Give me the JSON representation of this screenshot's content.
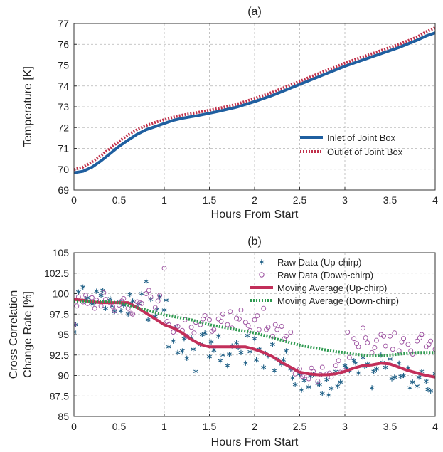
{
  "chart_data": [
    {
      "type": "line",
      "title": "(a)",
      "xlabel": "Hours From Start",
      "ylabel": "Temperature [K]",
      "xlim": [
        0,
        4
      ],
      "ylim": [
        69,
        77
      ],
      "xticks": [
        "0",
        "0.5",
        "1",
        "1.5",
        "2",
        "2.5",
        "3",
        "3.5",
        "4"
      ],
      "yticks": [
        "69",
        "70",
        "71",
        "72",
        "73",
        "74",
        "75",
        "76",
        "77"
      ],
      "grid": true,
      "legend_position": "bottom-right",
      "series": [
        {
          "name": "Inlet of Joint Box",
          "color": "#1f5fa0",
          "style": "solid",
          "x": [
            0,
            0.1,
            0.2,
            0.3,
            0.4,
            0.5,
            0.6,
            0.7,
            0.8,
            0.9,
            1.0,
            1.1,
            1.2,
            1.4,
            1.6,
            1.8,
            2.0,
            2.2,
            2.4,
            2.6,
            2.8,
            3.0,
            3.2,
            3.4,
            3.6,
            3.8,
            3.9,
            4.0
          ],
          "y": [
            69.83,
            69.9,
            70.1,
            70.4,
            70.75,
            71.1,
            71.4,
            71.68,
            71.9,
            72.05,
            72.2,
            72.35,
            72.45,
            72.6,
            72.78,
            72.98,
            73.25,
            73.55,
            73.9,
            74.25,
            74.6,
            74.95,
            75.25,
            75.55,
            75.85,
            76.2,
            76.4,
            76.55
          ]
        },
        {
          "name": "Outlet of Joint Box",
          "color": "#c0304a",
          "style": "dotted",
          "x": [
            0,
            0.1,
            0.2,
            0.3,
            0.4,
            0.5,
            0.6,
            0.7,
            0.8,
            0.9,
            1.0,
            1.1,
            1.2,
            1.4,
            1.6,
            1.8,
            2.0,
            2.2,
            2.4,
            2.6,
            2.8,
            3.0,
            3.2,
            3.4,
            3.6,
            3.8,
            3.9,
            4.0
          ],
          "y": [
            69.98,
            70.1,
            70.35,
            70.65,
            71.0,
            71.35,
            71.65,
            71.9,
            72.1,
            72.25,
            72.38,
            72.5,
            72.6,
            72.75,
            72.92,
            73.12,
            73.4,
            73.7,
            74.05,
            74.4,
            74.75,
            75.1,
            75.4,
            75.7,
            76.0,
            76.35,
            76.6,
            76.8
          ]
        }
      ]
    },
    {
      "type": "scatter",
      "title": "(b)",
      "xlabel": "Hours From Start",
      "ylabel": "Cross Correlation\nChange Rate [%]",
      "xlim": [
        0,
        4
      ],
      "ylim": [
        85,
        105
      ],
      "xticks": [
        "0",
        "0.5",
        "1",
        "1.5",
        "2",
        "2.5",
        "3",
        "3.5",
        "4"
      ],
      "yticks": [
        "85",
        "87.5",
        "90",
        "92.5",
        "95",
        "97.5",
        "100",
        "102.5",
        "105"
      ],
      "grid": true,
      "legend_position": "top-right",
      "raw_noise_note_free": true,
      "series": [
        {
          "name": "Raw Data (Up-chirp)",
          "kind": "raw",
          "marker": "asterisk",
          "color": "#1e5f86",
          "x": [
            0.0,
            0.05,
            0.1,
            0.15,
            0.2,
            0.25,
            0.3,
            0.35,
            0.4,
            0.45,
            0.5,
            0.55,
            0.6,
            0.65,
            0.7,
            0.75,
            0.8,
            0.85,
            0.9,
            0.95,
            1.0,
            1.05,
            1.1,
            1.15,
            1.2,
            1.25,
            1.3,
            1.35,
            1.4,
            1.45,
            1.5,
            1.55,
            1.6,
            1.65,
            1.7,
            1.75,
            1.8,
            1.85,
            1.9,
            1.95,
            2.0,
            2.05,
            2.1,
            2.15,
            2.2,
            2.25,
            2.3,
            2.35,
            2.4,
            2.45,
            2.5,
            2.55,
            2.6,
            2.65,
            2.7,
            2.75,
            2.8,
            2.85,
            2.9,
            2.95,
            3.0,
            3.05,
            3.1,
            3.15,
            3.2,
            3.25,
            3.3,
            3.35,
            3.4,
            3.45,
            3.5,
            3.55,
            3.6,
            3.65,
            3.7,
            3.75,
            3.8,
            3.85,
            3.9,
            3.95,
            4.0,
            0.02,
            0.12,
            0.22,
            0.32,
            0.42,
            0.52,
            0.62,
            0.72,
            0.82,
            0.92,
            1.02,
            1.12,
            1.22,
            1.32,
            1.42,
            1.52,
            1.62,
            1.72,
            1.82,
            1.92,
            2.02,
            2.12,
            2.22,
            2.32,
            2.42,
            2.52,
            2.62,
            2.72,
            2.82,
            2.92,
            3.02,
            3.12,
            3.22,
            3.32,
            3.42,
            3.52,
            3.62,
            3.72,
            3.82,
            3.92
          ],
          "y": [
            95.3,
            100.2,
            100.8,
            99.5,
            98.7,
            100.3,
            99.8,
            98.2,
            99.4,
            97.8,
            99.0,
            98.6,
            97.5,
            99.1,
            98.4,
            100.0,
            101.5,
            99.3,
            97.2,
            99.6,
            98.0,
            93.5,
            94.2,
            92.8,
            93.0,
            92.1,
            94.6,
            90.5,
            93.8,
            95.2,
            92.3,
            93.1,
            94.8,
            92.5,
            91.2,
            93.6,
            94.0,
            92.8,
            91.5,
            92.9,
            94.5,
            93.2,
            91.0,
            92.4,
            93.8,
            92.0,
            91.4,
            93.0,
            90.8,
            88.9,
            90.2,
            89.4,
            88.6,
            90.1,
            89.0,
            87.8,
            89.5,
            88.4,
            90.5,
            89.2,
            91.2,
            90.6,
            91.8,
            90.3,
            92.2,
            91.4,
            88.5,
            90.8,
            92.5,
            91.0,
            92.0,
            89.8,
            91.5,
            90.0,
            90.9,
            89.2,
            88.7,
            90.5,
            89.3,
            88.1,
            90.2,
            96.2,
            99.2,
            98.9,
            100.4,
            98.5,
            97.9,
            99.9,
            98.8,
            96.8,
            98.1,
            99.2,
            95.8,
            94.5,
            93.2,
            95.0,
            94.1,
            91.8,
            92.6,
            93.4,
            94.9,
            91.9,
            92.7,
            90.6,
            91.9,
            89.7,
            88.2,
            89.9,
            88.9,
            87.6,
            88.7,
            90.9,
            91.5,
            91.1,
            90.5,
            91.6,
            89.6,
            89.9,
            88.5,
            89.8,
            88.3
          ]
        },
        {
          "name": "Raw Data (Down-chirp)",
          "kind": "raw",
          "marker": "circle",
          "color": "#9a4e9e",
          "x": [
            0.0,
            0.05,
            0.1,
            0.15,
            0.2,
            0.25,
            0.3,
            0.35,
            0.4,
            0.45,
            0.5,
            0.55,
            0.6,
            0.65,
            0.7,
            0.75,
            0.8,
            0.85,
            0.9,
            0.95,
            1.0,
            1.05,
            1.1,
            1.15,
            1.2,
            1.25,
            1.3,
            1.35,
            1.4,
            1.45,
            1.5,
            1.55,
            1.6,
            1.65,
            1.7,
            1.75,
            1.8,
            1.85,
            1.9,
            1.95,
            2.0,
            2.05,
            2.1,
            2.15,
            2.2,
            2.25,
            2.3,
            2.35,
            2.4,
            2.45,
            2.5,
            2.55,
            2.6,
            2.65,
            2.7,
            2.75,
            2.8,
            2.85,
            2.9,
            2.95,
            3.0,
            3.05,
            3.1,
            3.15,
            3.2,
            3.25,
            3.3,
            3.35,
            3.4,
            3.45,
            3.5,
            3.55,
            3.6,
            3.65,
            3.7,
            3.75,
            3.8,
            3.85,
            3.9,
            3.95,
            4.0,
            0.03,
            0.13,
            0.23,
            0.33,
            0.43,
            0.53,
            0.63,
            0.73,
            0.83,
            0.93,
            1.03,
            1.13,
            1.23,
            1.33,
            1.43,
            1.53,
            1.63,
            1.73,
            1.83,
            1.93,
            2.03,
            2.13,
            2.23,
            2.33,
            2.43,
            2.53,
            2.63,
            2.73,
            2.83,
            2.93,
            3.03,
            3.13,
            3.23,
            3.33,
            3.43,
            3.53,
            3.63,
            3.73,
            3.83,
            3.93
          ],
          "y": [
            96.2,
            99.6,
            99.0,
            98.8,
            99.5,
            99.2,
            98.5,
            99.3,
            98.9,
            97.9,
            98.6,
            99.4,
            98.2,
            97.5,
            99.0,
            98.8,
            100.0,
            99.6,
            98.3,
            99.8,
            103.1,
            96.2,
            95.3,
            96.0,
            95.5,
            94.8,
            95.9,
            96.5,
            96.2,
            97.3,
            96.8,
            95.6,
            96.9,
            97.5,
            96.2,
            95.8,
            97.0,
            98.0,
            96.5,
            95.5,
            96.8,
            95.6,
            98.2,
            95.9,
            94.8,
            95.6,
            96.0,
            94.8,
            95.3,
            90.2,
            90.8,
            90.0,
            89.6,
            90.5,
            89.3,
            91.0,
            90.2,
            89.8,
            91.2,
            90.4,
            90.6,
            92.2,
            94.5,
            93.5,
            95.8,
            94.0,
            92.8,
            94.3,
            95.0,
            93.6,
            94.8,
            95.2,
            93.0,
            94.5,
            93.8,
            92.6,
            94.2,
            95.0,
            93.5,
            94.2,
            93.2,
            98.5,
            99.8,
            98.2,
            100.1,
            98.4,
            99.1,
            97.6,
            98.9,
            100.4,
            99.1,
            96.6,
            95.9,
            96.8,
            95.2,
            96.9,
            95.4,
            96.6,
            97.8,
            96.9,
            96.1,
            97.3,
            95.6,
            96.2,
            94.5,
            90.7,
            89.9,
            90.9,
            90.1,
            90.3,
            91.8,
            95.3,
            93.9,
            94.6,
            93.4,
            94.8,
            93.2,
            94.1,
            93.0,
            94.6,
            93.8
          ]
        },
        {
          "name": "Moving Average (Up-chirp)",
          "kind": "line",
          "style": "solid",
          "color": "#c22f5a",
          "x": [
            0,
            0.1,
            0.2,
            0.3,
            0.4,
            0.5,
            0.6,
            0.7,
            0.8,
            0.9,
            1.0,
            1.1,
            1.2,
            1.3,
            1.4,
            1.5,
            1.6,
            1.7,
            1.8,
            1.9,
            2.0,
            2.1,
            2.2,
            2.3,
            2.4,
            2.5,
            2.6,
            2.7,
            2.8,
            2.9,
            3.0,
            3.1,
            3.2,
            3.3,
            3.4,
            3.5,
            3.6,
            3.7,
            3.8,
            3.9,
            4.0
          ],
          "y": [
            99.3,
            99.2,
            99.0,
            98.9,
            98.9,
            98.9,
            98.9,
            98.3,
            97.6,
            96.9,
            96.2,
            95.8,
            95.2,
            94.4,
            93.8,
            93.5,
            93.5,
            93.5,
            93.5,
            93.5,
            93.2,
            92.8,
            92.3,
            91.6,
            91.0,
            90.4,
            90.2,
            90.1,
            90.1,
            90.2,
            90.5,
            90.9,
            91.2,
            91.3,
            91.5,
            91.4,
            91.0,
            90.6,
            90.3,
            90.0,
            89.8
          ]
        },
        {
          "name": "Moving Average (Down-chirp)",
          "kind": "line",
          "style": "dotted",
          "color": "#2e9a50",
          "x": [
            0,
            0.1,
            0.2,
            0.3,
            0.4,
            0.5,
            0.6,
            0.7,
            0.8,
            0.9,
            1.0,
            1.1,
            1.2,
            1.3,
            1.4,
            1.5,
            1.6,
            1.7,
            1.8,
            1.9,
            2.0,
            2.1,
            2.2,
            2.3,
            2.4,
            2.5,
            2.6,
            2.7,
            2.8,
            2.9,
            3.0,
            3.1,
            3.2,
            3.3,
            3.4,
            3.5,
            3.6,
            3.7,
            3.8,
            3.9,
            4.0
          ],
          "y": [
            99.0,
            99.1,
            99.1,
            99.0,
            99.0,
            98.9,
            98.6,
            98.3,
            98.0,
            97.7,
            97.4,
            97.2,
            97.0,
            96.8,
            96.5,
            96.2,
            96.0,
            95.8,
            95.6,
            95.4,
            95.2,
            94.9,
            94.6,
            94.3,
            94.0,
            93.7,
            93.5,
            93.3,
            93.1,
            92.9,
            92.8,
            92.6,
            92.5,
            92.4,
            92.4,
            92.5,
            92.6,
            92.7,
            92.8,
            92.8,
            92.8
          ]
        }
      ]
    }
  ]
}
